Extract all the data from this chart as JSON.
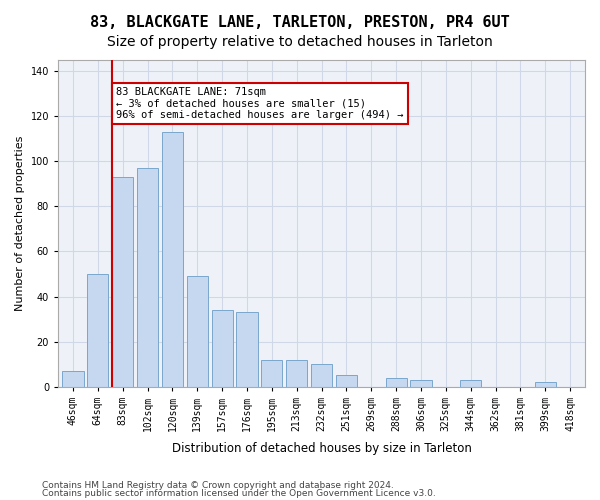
{
  "title1": "83, BLACKGATE LANE, TARLETON, PRESTON, PR4 6UT",
  "title2": "Size of property relative to detached houses in Tarleton",
  "xlabel": "Distribution of detached houses by size in Tarleton",
  "ylabel": "Number of detached properties",
  "categories": [
    "46sqm",
    "64sqm",
    "83sqm",
    "102sqm",
    "120sqm",
    "139sqm",
    "157sqm",
    "176sqm",
    "195sqm",
    "213sqm",
    "232sqm",
    "251sqm",
    "269sqm",
    "288sqm",
    "306sqm",
    "325sqm",
    "344sqm",
    "362sqm",
    "381sqm",
    "399sqm",
    "418sqm"
  ],
  "values": [
    7,
    50,
    93,
    97,
    113,
    49,
    34,
    33,
    12,
    12,
    10,
    5,
    0,
    4,
    3,
    0,
    3,
    0,
    0,
    2,
    0
  ],
  "bar_color": "#c5d8f0",
  "bar_edge_color": "#7ba7cc",
  "vline_color": "#cc0000",
  "annotation_text": "83 BLACKGATE LANE: 71sqm\n← 3% of detached houses are smaller (15)\n96% of semi-detached houses are larger (494) →",
  "annotation_box_color": "#ffffff",
  "annotation_box_edge": "#cc0000",
  "ylim": [
    0,
    145
  ],
  "yticks": [
    0,
    20,
    40,
    60,
    80,
    100,
    120,
    140
  ],
  "grid_color": "#d0d8e8",
  "background_color": "#eef2f8",
  "footer1": "Contains HM Land Registry data © Crown copyright and database right 2024.",
  "footer2": "Contains public sector information licensed under the Open Government Licence v3.0.",
  "title1_fontsize": 11,
  "title2_fontsize": 10,
  "axis_fontsize": 8,
  "tick_fontsize": 7,
  "footer_fontsize": 6.5
}
